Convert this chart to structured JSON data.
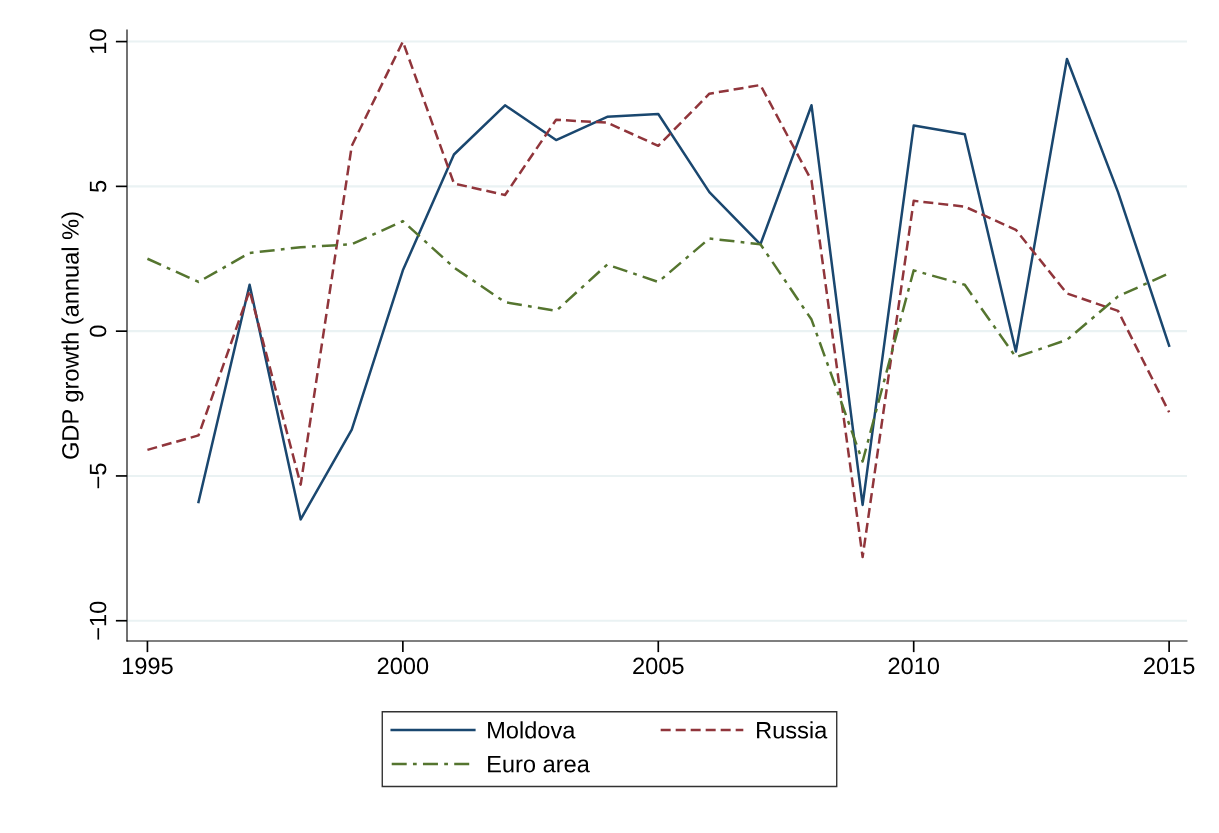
{
  "chart_data": {
    "type": "line",
    "ylabel": "GDP growth (annual %)",
    "x": [
      1995,
      1996,
      1997,
      1998,
      1999,
      2000,
      2001,
      2002,
      2003,
      2004,
      2005,
      2006,
      2007,
      2008,
      2009,
      2010,
      2011,
      2012,
      2013,
      2014,
      2015
    ],
    "series": [
      {
        "name": "Moldova",
        "color": "#1a476f",
        "line_style": "solid",
        "values": [
          null,
          -5.9,
          1.6,
          -6.5,
          -3.4,
          2.1,
          6.1,
          7.8,
          6.6,
          7.4,
          7.5,
          4.8,
          3.0,
          7.8,
          -6.0,
          7.1,
          6.8,
          -0.7,
          9.4,
          4.8,
          -0.5
        ]
      },
      {
        "name": "Russia",
        "color": "#90353b",
        "line_style": "dashed",
        "values": [
          -4.1,
          -3.6,
          1.4,
          -5.3,
          6.4,
          10.0,
          5.1,
          4.7,
          7.3,
          7.2,
          6.4,
          8.2,
          8.5,
          5.2,
          -7.8,
          4.5,
          4.3,
          3.5,
          1.3,
          0.7,
          -2.8
        ]
      },
      {
        "name": "Euro area",
        "color": "#55752f",
        "line_style": "dashdot",
        "values": [
          2.5,
          1.7,
          2.7,
          2.9,
          3.0,
          3.8,
          2.2,
          1.0,
          0.7,
          2.3,
          1.7,
          3.2,
          3.0,
          0.4,
          -4.5,
          2.1,
          1.6,
          -0.9,
          -0.3,
          1.2,
          2.0
        ]
      }
    ],
    "xlim": [
      1994.6,
      2015.35
    ],
    "xticks": [
      1995,
      2000,
      2005,
      2010,
      2015
    ],
    "ylim": [
      -10.7,
      10.4
    ],
    "yticks": [
      -10,
      -5,
      0,
      5,
      10
    ],
    "grid": "y",
    "legend": "bottom",
    "marker": "none"
  }
}
